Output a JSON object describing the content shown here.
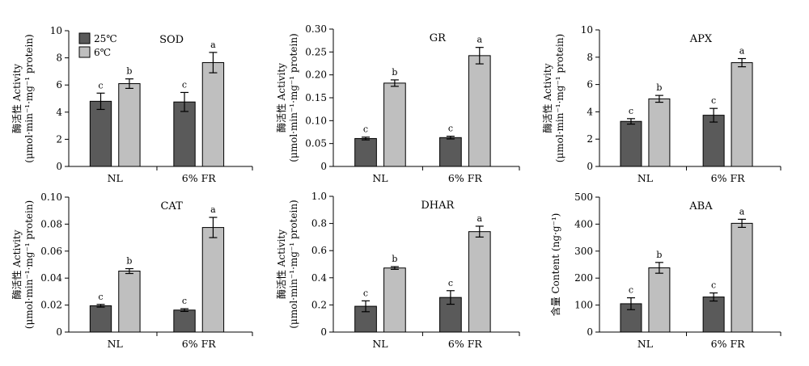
{
  "colors": {
    "s25": "#5a5a5a",
    "s6": "#bfbfbf",
    "axis": "#000000"
  },
  "legend": [
    "25℃",
    "6℃"
  ],
  "chart_data": [
    {
      "type": "bar",
      "title": "SOD",
      "ylabel": [
        "酶活性 Activity",
        "(μmol·min⁻¹·mg⁻¹ protein)"
      ],
      "categories": [
        "NL",
        "6% FR"
      ],
      "ylim": [
        0,
        10
      ],
      "yticks": [
        "0",
        "2",
        "4",
        "6",
        "8",
        "10"
      ],
      "series": [
        {
          "name": "25℃",
          "values": [
            4.8,
            4.75
          ],
          "errors": [
            0.6,
            0.7
          ],
          "sig": [
            "c",
            "c"
          ]
        },
        {
          "name": "6℃",
          "values": [
            6.1,
            7.65
          ],
          "errors": [
            0.35,
            0.75
          ],
          "sig": [
            "b",
            "a"
          ]
        }
      ]
    },
    {
      "type": "bar",
      "title": "GR",
      "ylabel": [
        "酶活性 Activity",
        "(μmol·min⁻¹·mg⁻¹ protein)"
      ],
      "categories": [
        "NL",
        "6% FR"
      ],
      "ylim": [
        0,
        0.3
      ],
      "yticks": [
        "0",
        "0.05",
        "0.10",
        "0.15",
        "0.20",
        "0.25",
        "0.30"
      ],
      "series": [
        {
          "name": "25℃",
          "values": [
            0.061,
            0.063
          ],
          "errors": [
            0.003,
            0.003
          ],
          "sig": [
            "c",
            "c"
          ]
        },
        {
          "name": "6℃",
          "values": [
            0.182,
            0.242
          ],
          "errors": [
            0.007,
            0.018
          ],
          "sig": [
            "b",
            "a"
          ]
        }
      ]
    },
    {
      "type": "bar",
      "title": "APX",
      "ylabel": [
        "酶活性 Activity",
        "(μmol·min⁻¹·mg⁻¹ protein)"
      ],
      "categories": [
        "NL",
        "6% FR"
      ],
      "ylim": [
        0,
        10
      ],
      "yticks": [
        "0",
        "2",
        "4",
        "6",
        "8",
        "10"
      ],
      "series": [
        {
          "name": "25℃",
          "values": [
            3.3,
            3.75
          ],
          "errors": [
            0.2,
            0.5
          ],
          "sig": [
            "c",
            "c"
          ]
        },
        {
          "name": "6℃",
          "values": [
            4.95,
            7.6
          ],
          "errors": [
            0.25,
            0.3
          ],
          "sig": [
            "b",
            "a"
          ]
        }
      ]
    },
    {
      "type": "bar",
      "title": "CAT",
      "ylabel": [
        "酶活性 Activity",
        "(μmol·min⁻¹·mg⁻¹ protein)"
      ],
      "categories": [
        "NL",
        "6% FR"
      ],
      "ylim": [
        0,
        0.1
      ],
      "yticks": [
        "0",
        "0.02",
        "0.04",
        "0.06",
        "0.08",
        "0.10"
      ],
      "series": [
        {
          "name": "25℃",
          "values": [
            0.0195,
            0.0163
          ],
          "errors": [
            0.001,
            0.001
          ],
          "sig": [
            "c",
            "c"
          ]
        },
        {
          "name": "6℃",
          "values": [
            0.0452,
            0.0775
          ],
          "errors": [
            0.0018,
            0.0075
          ],
          "sig": [
            "b",
            "a"
          ]
        }
      ]
    },
    {
      "type": "bar",
      "title": "DHAR",
      "ylabel": [
        "酶活性 Activity",
        "(μmol·min⁻¹·mg⁻¹ protein)"
      ],
      "categories": [
        "NL",
        "6% FR"
      ],
      "ylim": [
        0,
        1.0
      ],
      "yticks": [
        "0",
        "0.2",
        "0.4",
        "0.6",
        "0.8",
        "1.0"
      ],
      "series": [
        {
          "name": "25℃",
          "values": [
            0.19,
            0.255
          ],
          "errors": [
            0.04,
            0.05
          ],
          "sig": [
            "c",
            "c"
          ]
        },
        {
          "name": "6℃",
          "values": [
            0.472,
            0.74
          ],
          "errors": [
            0.01,
            0.04
          ],
          "sig": [
            "b",
            "a"
          ]
        }
      ]
    },
    {
      "type": "bar",
      "title": "ABA",
      "ylabel": [
        "含量 Content (ng·g⁻¹)"
      ],
      "categories": [
        "NL",
        "6% FR"
      ],
      "ylim": [
        0,
        500
      ],
      "yticks": [
        "0",
        "100",
        "200",
        "300",
        "400",
        "500"
      ],
      "series": [
        {
          "name": "25℃",
          "values": [
            105,
            130
          ],
          "errors": [
            22,
            15
          ],
          "sig": [
            "c",
            "c"
          ]
        },
        {
          "name": "6℃",
          "values": [
            238,
            403
          ],
          "errors": [
            20,
            15
          ],
          "sig": [
            "b",
            "a"
          ]
        }
      ]
    }
  ]
}
